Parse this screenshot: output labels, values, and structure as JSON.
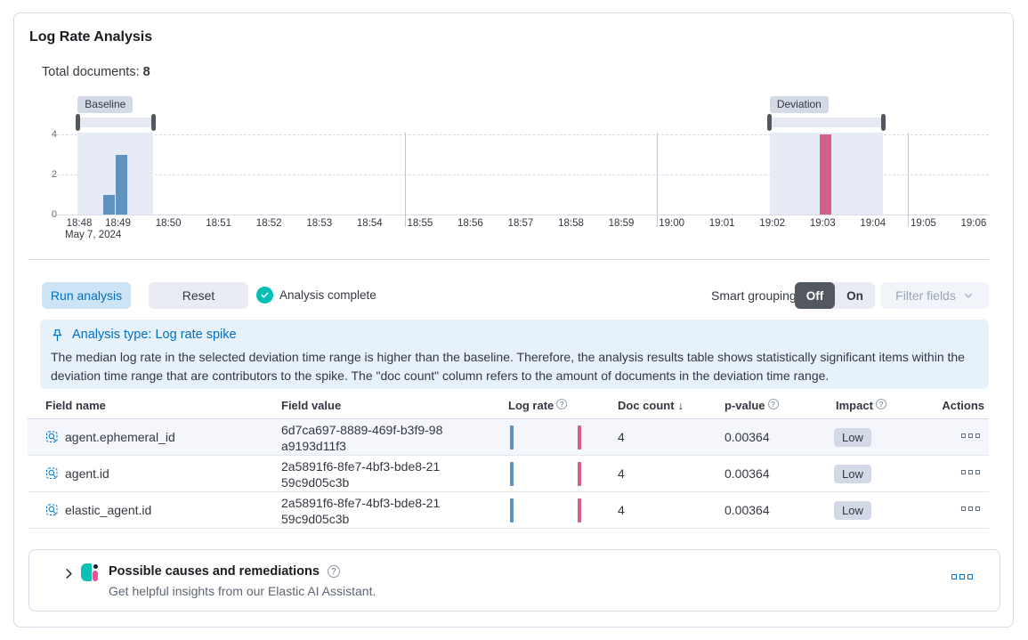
{
  "panel": {
    "title": "Log Rate Analysis"
  },
  "summary": {
    "label": "Total documents:",
    "value": "8"
  },
  "chart_data": {
    "type": "bar",
    "title": "Log rate histogram with baseline and deviation time ranges",
    "date_label": "May 7, 2024",
    "x_ticks": [
      "18:48",
      "18:49",
      "18:50",
      "18:51",
      "18:52",
      "18:53",
      "18:54",
      "18:55",
      "18:56",
      "18:57",
      "18:58",
      "18:59",
      "19:00",
      "19:01",
      "19:02",
      "19:03",
      "19:04",
      "19:05",
      "19:06"
    ],
    "major_gridlines": [
      "18:55",
      "19:00",
      "19:05"
    ],
    "y_ticks": [
      0,
      2,
      4
    ],
    "ylim": [
      0,
      4
    ],
    "bucket_seconds": 15,
    "series": [
      {
        "name": "baseline",
        "color": "#6092C0",
        "bars": [
          {
            "time": "18:49:00",
            "value": 1
          },
          {
            "time": "18:49:15",
            "value": 3
          }
        ]
      },
      {
        "name": "deviation",
        "color": "#D36086",
        "bars": [
          {
            "time": "19:03:15",
            "value": 4
          }
        ]
      }
    ],
    "windows": [
      {
        "label": "Baseline",
        "from": "18:48:30",
        "to": "18:50:00"
      },
      {
        "label": "Deviation",
        "from": "19:02:15",
        "to": "19:04:30"
      }
    ]
  },
  "controls": {
    "run_label": "Run analysis",
    "reset_label": "Reset",
    "status_label": "Analysis complete",
    "smart_grouping_label": "Smart grouping",
    "toggle_off": "Off",
    "toggle_on": "On",
    "toggle_selected": "Off",
    "filter_fields_label": "Filter fields"
  },
  "callout": {
    "title": "Analysis type: Log rate spike",
    "body": "The median log rate in the selected deviation time range is higher than the baseline. Therefore, the analysis results table shows statistically significant items within the deviation time range that are contributors to the spike. The \"doc count\" column refers to the amount of documents in the deviation time range."
  },
  "table": {
    "columns": [
      {
        "key": "field_name",
        "label": "Field name"
      },
      {
        "key": "field_value",
        "label": "Field value"
      },
      {
        "key": "log_rate",
        "label": "Log rate",
        "info": true
      },
      {
        "key": "doc_count",
        "label": "Doc count",
        "sort": "desc"
      },
      {
        "key": "p_value",
        "label": "p-value",
        "info": true
      },
      {
        "key": "impact",
        "label": "Impact",
        "info": true
      },
      {
        "key": "actions",
        "label": "Actions"
      }
    ],
    "rows": [
      {
        "field_name": "agent.ephemeral_id",
        "field_value": "6d7ca697-8889-469f-b3f9-98a9193d11f3",
        "doc_count": "4",
        "p_value": "0.00364",
        "impact": "Low"
      },
      {
        "field_name": "agent.id",
        "field_value": "2a5891f6-8fe7-4bf3-bde8-2159c9d05c3b",
        "doc_count": "4",
        "p_value": "0.00364",
        "impact": "Low"
      },
      {
        "field_name": "elastic_agent.id",
        "field_value": "2a5891f6-8fe7-4bf3-bde8-2159c9d05c3b",
        "doc_count": "4",
        "p_value": "0.00364",
        "impact": "Low"
      }
    ]
  },
  "ai_panel": {
    "title": "Possible causes and remediations",
    "subtitle": "Get helpful insights from our Elastic AI Assistant."
  },
  "colors": {
    "primary": "#0071c2",
    "icon_blue": "#0077cc",
    "bar_baseline": "#6092C0",
    "bar_deviation": "#D36086",
    "success": "#00bfb3",
    "badge_bg": "#d3dae6",
    "callout_bg": "#e6f1fa",
    "border": "#d3dae6"
  }
}
